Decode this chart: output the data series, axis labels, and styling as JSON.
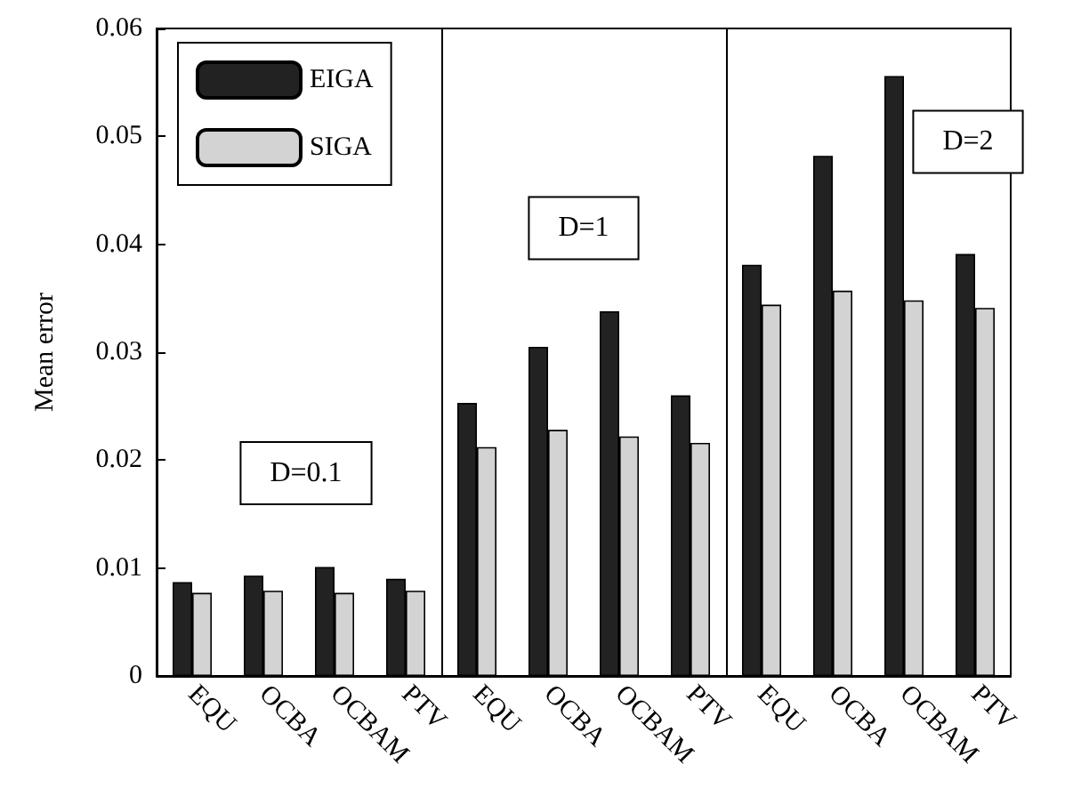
{
  "chart_data": {
    "type": "bar",
    "ylabel": "Mean error",
    "categories": [
      "EQU",
      "OCBA",
      "OCBAM",
      "PTV",
      "EQU",
      "OCBA",
      "OCBAM",
      "PTV",
      "EQU",
      "OCBA",
      "OCBAM",
      "PTV"
    ],
    "series": [
      {
        "name": "EIGA",
        "color": "#222222",
        "values": [
          0.0087,
          0.0093,
          0.0101,
          0.009,
          0.0253,
          0.0305,
          0.0338,
          0.026,
          0.0381,
          0.0482,
          0.0556,
          0.0391
        ]
      },
      {
        "name": "SIGA",
        "color": "#d3d3d3",
        "values": [
          0.0077,
          0.0079,
          0.0077,
          0.0079,
          0.0212,
          0.0228,
          0.0222,
          0.0216,
          0.0344,
          0.0357,
          0.0348,
          0.0341
        ]
      }
    ],
    "ylim": [
      0,
      0.06
    ],
    "yticks": [
      0,
      0.01,
      0.02,
      0.03,
      0.04,
      0.05,
      0.06
    ],
    "annotations": [
      "D=0.1",
      "D=1",
      "D=2"
    ],
    "legend": "top left",
    "grid": false
  }
}
